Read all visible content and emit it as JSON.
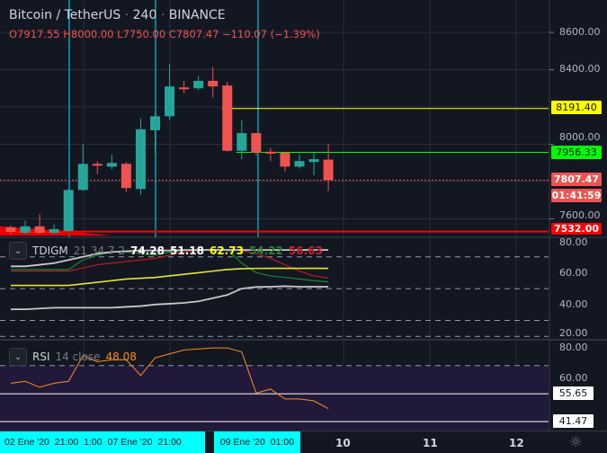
{
  "header": {
    "symbol": "Bitcoin / TetherUS",
    "sep1": "·",
    "interval": "240",
    "sep2": "·",
    "exchange": "BINANCE",
    "open_label": "O",
    "open": "7917.55",
    "high_label": "H",
    "high": "8000.00",
    "low_label": "L",
    "low": "7750.00",
    "close_label": "C",
    "close": "7807.47",
    "change": "−110.07 (−1.39%)"
  },
  "price_axis": {
    "ticks": [
      "8600.00",
      "8400.00",
      "8000.00",
      "7600.00"
    ],
    "tags": {
      "yellow": "8191.40",
      "green": "7956.33",
      "last": "7807.47",
      "countdown": "01:41:59",
      "red": "7532.00"
    }
  },
  "tdigm": {
    "name": "TDIGM",
    "params": "21 34 7 2",
    "v1": "74.28",
    "v2": "51.18",
    "v3": "62.73",
    "v4": "54.22",
    "v5": "56.63",
    "ticks": [
      "80.00",
      "60.00",
      "40.00",
      "20.00"
    ]
  },
  "rsi": {
    "name": "RSI",
    "params": "14 close",
    "value": "48.08",
    "ticks": [
      "80.00",
      "60.00"
    ],
    "tags": [
      "55.65",
      "41.47"
    ]
  },
  "time_axis": {
    "seg1": [
      "02 Ene '20",
      "21:00",
      "1:00",
      "07 Ene '20",
      "21:00"
    ],
    "seg2": [
      "09 Ene '20",
      "01:00"
    ],
    "days": [
      "10",
      "11",
      "12"
    ],
    "settings_icon": "gear-icon"
  },
  "colors": {
    "up": "#26a69a",
    "down": "#ef5350",
    "yellow": "#ffff00",
    "green": "#00ff00",
    "red": "#ff0000",
    "cyan": "#00e5ff",
    "rsi": "#ff8c1a"
  },
  "chart_data": {
    "type": "candlestick",
    "candles": [
      [
        7555,
        7565,
        7520,
        7530
      ],
      [
        7525,
        7590,
        7520,
        7560
      ],
      [
        7560,
        7625,
        7520,
        7525
      ],
      [
        7525,
        7570,
        7520,
        7545
      ],
      [
        7535,
        7760,
        7530,
        7755
      ],
      [
        7755,
        8000,
        7750,
        7895
      ],
      [
        7895,
        7910,
        7840,
        7885
      ],
      [
        7880,
        7945,
        7865,
        7900
      ],
      [
        7895,
        7905,
        7745,
        7765
      ],
      [
        7760,
        8140,
        7730,
        8080
      ],
      [
        8075,
        8165,
        7950,
        8150
      ],
      [
        8150,
        8430,
        8130,
        8310
      ],
      [
        8305,
        8340,
        8275,
        8295
      ],
      [
        8300,
        8365,
        8290,
        8340
      ],
      [
        8340,
        8415,
        8250,
        8310
      ],
      [
        8315,
        8335,
        7960,
        7965
      ],
      [
        7965,
        8130,
        7920,
        8060
      ],
      [
        8060,
        8060,
        7940,
        7955
      ],
      [
        7960,
        7980,
        7910,
        7950
      ],
      [
        7955,
        7955,
        7855,
        7880
      ],
      [
        7880,
        7945,
        7870,
        7910
      ],
      [
        7905,
        7955,
        7835,
        7920
      ],
      [
        7917.55,
        8000,
        7750,
        7807.47
      ]
    ],
    "hlines": [
      {
        "price": 8191.4,
        "color": "yellow",
        "from": 15
      },
      {
        "price": 7956.33,
        "color": "green",
        "from": 16
      },
      {
        "price": 7532,
        "color": "red",
        "from": 0
      }
    ],
    "tdigm_series": {
      "upper": [
        64,
        64,
        65,
        66,
        68,
        70,
        72,
        73,
        73.5,
        74,
        74,
        74,
        74.3,
        74.3,
        74.3,
        74.3,
        74.3,
        74.3,
        74.3,
        74.3,
        74.3,
        74.3,
        74.28
      ],
      "green": [
        62,
        62,
        62,
        62,
        62,
        68,
        71,
        73,
        73,
        72,
        71,
        73,
        74,
        74.5,
        74.5,
        74.5,
        66,
        60,
        58,
        57,
        56,
        55,
        54.22
      ],
      "red": [
        61,
        61,
        61,
        61,
        61,
        63,
        65,
        66,
        67,
        68,
        69,
        71,
        73,
        74,
        74.5,
        74.5,
        74,
        72,
        69,
        65,
        61,
        58,
        56.63
      ],
      "yellow": [
        52,
        52,
        52,
        52,
        52,
        53,
        54,
        55,
        56,
        56.5,
        57,
        58,
        59,
        60,
        61,
        62,
        62.5,
        62.7,
        62.73,
        62.73,
        62.73,
        62.73,
        62.73
      ],
      "lower": [
        37,
        37,
        37.5,
        38,
        38,
        38,
        38,
        38,
        38.5,
        39,
        40,
        40.5,
        41,
        42,
        44,
        46,
        50,
        51,
        51.2,
        51.5,
        51.2,
        51.2,
        51.18
      ]
    },
    "rsi_series": [
      61,
      62,
      59,
      61,
      62,
      75,
      72,
      73,
      73,
      65,
      74,
      76,
      78,
      78.5,
      79,
      79,
      77,
      56,
      58,
      53,
      53,
      52,
      48.08
    ],
    "price_range": [
      7520,
      8680
    ],
    "osc_range": [
      15,
      85
    ]
  }
}
